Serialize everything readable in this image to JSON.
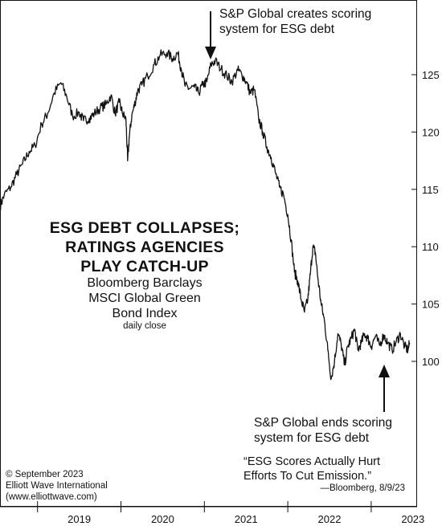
{
  "chart_data": {
    "type": "line",
    "title_lines": [
      "ESG DEBT COLLAPSES;",
      "RATINGS AGENCIES",
      "PLAY CATCH-UP"
    ],
    "subtitle_lines": [
      "Bloomberg Barclays",
      "MSCI Global Green",
      "Bond Index"
    ],
    "note": "daily close",
    "x_ticks": [
      "2019",
      "2020",
      "2021",
      "2022",
      "2023"
    ],
    "y_ticks": [
      "100",
      "105",
      "110",
      "115",
      "120",
      "125"
    ],
    "xlim": [
      2018.55,
      2023.55
    ],
    "ylim": [
      95,
      130
    ],
    "grid": false,
    "series": [
      {
        "x": [
          2018.55,
          2018.6,
          2018.68,
          2018.75,
          2018.82,
          2018.9,
          2018.97,
          2019.05,
          2019.12,
          2019.2,
          2019.28,
          2019.35,
          2019.42,
          2019.5,
          2019.55,
          2019.62,
          2019.68,
          2019.75,
          2019.82,
          2019.88,
          2019.93,
          2019.98,
          2020.02,
          2020.06,
          2020.08,
          2020.1,
          2020.13,
          2020.17,
          2020.2,
          2020.25,
          2020.32,
          2020.4,
          2020.47,
          2020.55,
          2020.62,
          2020.68,
          2020.72,
          2020.77,
          2020.82,
          2020.88,
          2020.93,
          2020.98,
          2021.03,
          2021.08,
          2021.13,
          2021.2,
          2021.27,
          2021.33,
          2021.4,
          2021.45,
          2021.5,
          2021.55,
          2021.6,
          2021.65,
          2021.7,
          2021.75,
          2021.8,
          2021.85,
          2021.9,
          2021.95,
          2022.0,
          2022.04,
          2022.08,
          2022.12,
          2022.16,
          2022.2,
          2022.24,
          2022.27,
          2022.3,
          2022.33,
          2022.36,
          2022.4,
          2022.44,
          2022.48,
          2022.52,
          2022.56,
          2022.6,
          2022.64,
          2022.68,
          2022.72,
          2022.76,
          2022.8,
          2022.84,
          2022.88,
          2022.92,
          2022.96,
          2023.0,
          2023.05,
          2023.1,
          2023.15,
          2023.2,
          2023.25,
          2023.3,
          2023.35,
          2023.4,
          2023.44,
          2023.46
        ],
        "y": [
          113.5,
          114.5,
          115.2,
          116.3,
          117.2,
          118.3,
          118.8,
          120.7,
          121.6,
          123.4,
          124.3,
          123.1,
          121.4,
          121.7,
          121.0,
          121.2,
          121.6,
          122.1,
          122.4,
          123.2,
          121.6,
          122.6,
          121.6,
          121.1,
          117.5,
          119.6,
          121.4,
          122.6,
          123.6,
          124.1,
          124.9,
          125.9,
          126.7,
          126.9,
          126.4,
          126.9,
          125.6,
          124.0,
          123.8,
          123.9,
          123.4,
          124.1,
          124.4,
          125.9,
          126.2,
          125.5,
          124.9,
          124.4,
          125.4,
          125.0,
          124.4,
          123.4,
          123.7,
          121.2,
          120.0,
          118.7,
          117.8,
          116.5,
          115.2,
          114.5,
          112.8,
          110.6,
          107.8,
          107.0,
          105.4,
          104.3,
          105.4,
          107.6,
          110.0,
          109.5,
          107.3,
          105.0,
          103.5,
          101.0,
          98.5,
          100.0,
          102.4,
          101.5,
          99.7,
          101.3,
          102.0,
          102.8,
          101.0,
          101.6,
          102.4,
          102.0,
          101.3,
          102.2,
          101.4,
          102.3,
          101.6,
          101.0,
          101.7,
          102.4,
          101.3,
          101.0,
          101.6
        ]
      }
    ]
  },
  "annotations": {
    "top": [
      "S&P Global creates scoring",
      "system for ESG debt"
    ],
    "bottom": [
      "S&P Global ends scoring",
      "system for ESG debt"
    ],
    "quote": [
      "“ESG Scores Actually Hurt",
      "Efforts To Cut Emission.”"
    ],
    "quote_source": "—Bloomberg, 8/9/23",
    "credit": [
      "© September 2023",
      "Elliott Wave International",
      "(www.elliottwave.com)"
    ]
  },
  "colors": {
    "line": "#111111",
    "text": "#111111",
    "frame": "#111111",
    "background": "#ffffff"
  }
}
